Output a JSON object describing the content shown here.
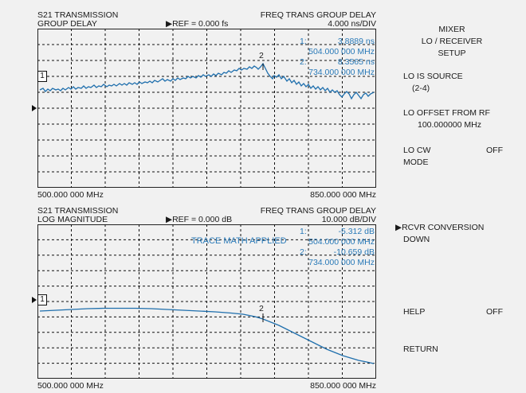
{
  "panel_top": {
    "title_line1": "S21 TRANSMISSION",
    "title_line2": "GROUP DELAY",
    "ref": "REF = 0.000 fs",
    "format": "FREQ TRANS GROUP DELAY",
    "scale": "4.000 ns/DIV",
    "marker1_label": "1:",
    "marker1_value": "3.8889 ns",
    "marker1_freq": "504.000 000 MHz",
    "marker2_label": "2:",
    "marker2_value": "8.3565 ns",
    "marker2_freq": "734.000 000 MHz",
    "ref_marker": "1",
    "trace_marker": "2",
    "start_freq": "500.000 000 MHz",
    "stop_freq": "850.000 000 MHz"
  },
  "panel_bottom": {
    "title_line1": "S21 TRANSMISSION",
    "title_line2": "LOG MAGNITUDE",
    "ref": "REF = 0.000 dB",
    "format": "FREQ TRANS GROUP DELAY",
    "scale": "10.000 dB/DIV",
    "trace_math": "TRACE MATH APPLIED",
    "marker1_label": "1:",
    "marker1_value": "-5.312 dB",
    "marker1_freq": "504.000 000 MHz",
    "marker2_label": "2:",
    "marker2_value": "-10.659 dB",
    "marker2_freq": "734.000 000 MHz",
    "ref_marker": "1",
    "trace_marker": "2",
    "start_freq": "500.000 000 MHz",
    "stop_freq": "850.000 000 MHz"
  },
  "softkeys": {
    "menu_line1": "MIXER",
    "menu_line2": "LO / RECEIVER",
    "menu_line3": "SETUP",
    "lo_source": "LO IS SOURCE",
    "lo_source_value": "(2-4)",
    "lo_offset": "LO OFFSET FROM RF",
    "lo_offset_value": "100.000000 MHz",
    "lo_cw_line1": "LO CW",
    "lo_cw_line2": "MODE",
    "lo_cw_state": "OFF",
    "rcvr_conv_line1": "RCVR CONVERSION",
    "rcvr_conv_line2": "DOWN",
    "help": "HELP",
    "help_state": "OFF",
    "return": "RETURN"
  },
  "colors": {
    "trace": "#1f6fad",
    "annotation": "#2a7ab8",
    "text": "#1a1a1a",
    "background": "#f1f1f1"
  }
}
